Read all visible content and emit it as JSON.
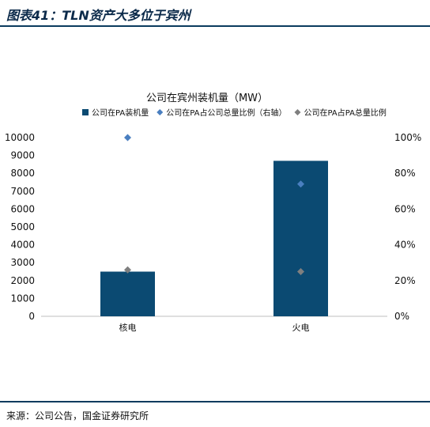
{
  "figure": {
    "title": "图表41：TLN资产大多位于宾州",
    "source": "来源：公司公告，国金证券研究所"
  },
  "colors": {
    "bar": "#0b4a72",
    "rule": "#0b3b5e",
    "diamond_share_in_pa": "#4a7fc0",
    "diamond_pa_share_total": "#7f7f7f"
  },
  "chart_data": {
    "type": "bar",
    "title": "公司在宾州装机量（MW）",
    "categories": [
      "核电",
      "火电"
    ],
    "series": [
      {
        "name": "公司在PA装机量",
        "kind": "bar",
        "axis": "left",
        "values": [
          2500,
          8700
        ]
      },
      {
        "name": "公司在PA占公司总量比例（右轴）",
        "kind": "scatter",
        "marker": "diamond",
        "axis": "right",
        "values": [
          1.0,
          0.74
        ]
      },
      {
        "name": "公司在PA占PA总量比例",
        "kind": "scatter",
        "marker": "diamond",
        "axis": "right",
        "values": [
          0.26,
          0.25
        ]
      }
    ],
    "y_left": {
      "range": [
        0,
        10000
      ],
      "ticks": [
        "0",
        "1000",
        "2000",
        "3000",
        "4000",
        "5000",
        "6000",
        "7000",
        "8000",
        "9000",
        "10000"
      ]
    },
    "y_right": {
      "range": [
        0,
        1
      ],
      "ticks": [
        "0%",
        "20%",
        "40%",
        "60%",
        "80%",
        "100%"
      ]
    },
    "grid": false,
    "legend_position": "top"
  }
}
